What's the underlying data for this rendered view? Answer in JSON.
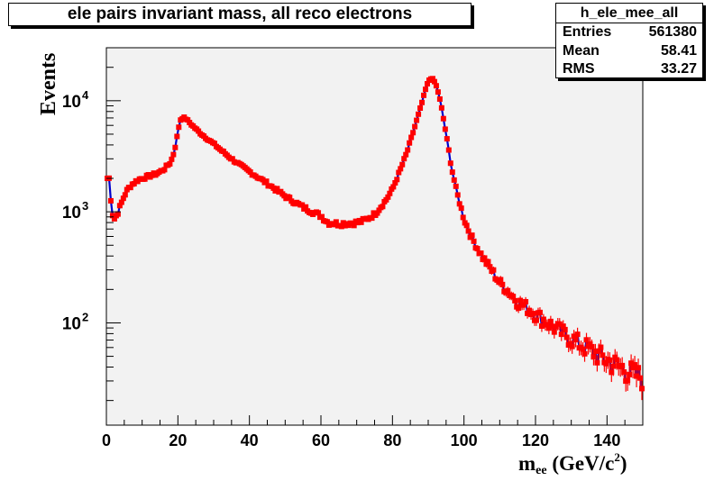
{
  "chart_data": {
    "type": "scatter",
    "title": "ele pairs invariant mass, all reco electrons",
    "xlabel": "m",
    "xlabel_subscript": "ee",
    "xlabel_unit_open": " (GeV/c",
    "xlabel_unit_sup": "2",
    "xlabel_unit_close": ")",
    "ylabel": "Events",
    "xlim": [
      0,
      150
    ],
    "ylim": [
      12,
      30000
    ],
    "yscale": "log",
    "grid": false,
    "x_ticks": [
      "0",
      "20",
      "40",
      "60",
      "80",
      "100",
      "120",
      "140"
    ],
    "y_ticks": [
      {
        "value": 100,
        "base": "10",
        "exp": "2"
      },
      {
        "value": 1000,
        "base": "10",
        "exp": "3"
      },
      {
        "value": 10000,
        "base": "10",
        "exp": "4"
      }
    ],
    "marker_color": "#ff0000",
    "line_color": "#0000cc",
    "frame_fill": "#f2f2f2",
    "knots": [
      [
        0.25,
        2000
      ],
      [
        0.75,
        2000
      ],
      [
        1.25,
        1300
      ],
      [
        1.75,
        950
      ],
      [
        2.25,
        870
      ],
      [
        3,
        950
      ],
      [
        4,
        1150
      ],
      [
        5,
        1400
      ],
      [
        6,
        1600
      ],
      [
        7,
        1750
      ],
      [
        8,
        1850
      ],
      [
        9,
        1950
      ],
      [
        10,
        2000
      ],
      [
        12,
        2100
      ],
      [
        14,
        2200
      ],
      [
        16,
        2400
      ],
      [
        18,
        2800
      ],
      [
        19,
        3500
      ],
      [
        20,
        5200
      ],
      [
        20.5,
        6500
      ],
      [
        21,
        7000
      ],
      [
        22,
        7000
      ],
      [
        23,
        6500
      ],
      [
        24,
        6000
      ],
      [
        26,
        5200
      ],
      [
        28,
        4600
      ],
      [
        30,
        4100
      ],
      [
        32,
        3600
      ],
      [
        35,
        3000
      ],
      [
        38,
        2550
      ],
      [
        40,
        2300
      ],
      [
        45,
        1800
      ],
      [
        50,
        1380
      ],
      [
        55,
        1100
      ],
      [
        60,
        920
      ],
      [
        62,
        800
      ],
      [
        65,
        780
      ],
      [
        70,
        800
      ],
      [
        72,
        830
      ],
      [
        75,
        950
      ],
      [
        78,
        1250
      ],
      [
        80,
        1600
      ],
      [
        82,
        2300
      ],
      [
        84,
        3400
      ],
      [
        86,
        5500
      ],
      [
        88,
        9000
      ],
      [
        89.5,
        13500
      ],
      [
        90.5,
        16000
      ],
      [
        91.5,
        15500
      ],
      [
        92.5,
        13000
      ],
      [
        93.5,
        9500
      ],
      [
        94.5,
        6200
      ],
      [
        95.5,
        4000
      ],
      [
        96.5,
        2500
      ],
      [
        98,
        1500
      ],
      [
        100,
        860
      ],
      [
        102,
        600
      ],
      [
        105,
        400
      ],
      [
        108,
        290
      ],
      [
        110,
        230
      ],
      [
        112,
        200
      ],
      [
        115,
        155
      ],
      [
        118,
        135
      ],
      [
        120,
        120
      ],
      [
        125,
        92
      ],
      [
        130,
        72
      ],
      [
        135,
        58
      ],
      [
        140,
        46
      ],
      [
        145,
        38
      ],
      [
        150,
        32
      ]
    ],
    "bin_width": 0.5,
    "stats_box": {
      "name": "h_ele_mee_all",
      "rows": [
        {
          "label": "Entries",
          "value": "561380"
        },
        {
          "label": "Mean",
          "value": "58.41"
        },
        {
          "label": "RMS",
          "value": "33.27"
        }
      ]
    }
  }
}
